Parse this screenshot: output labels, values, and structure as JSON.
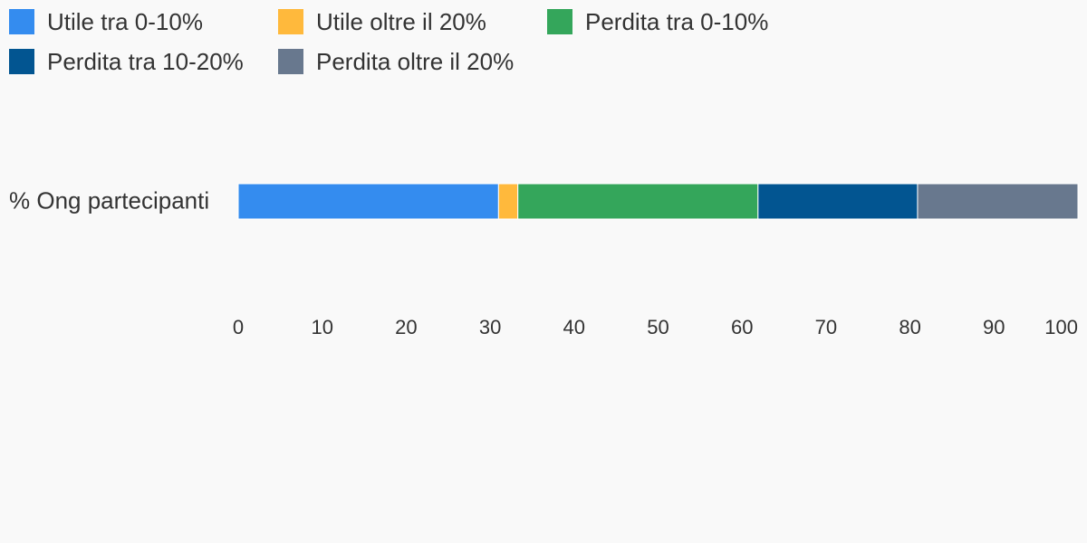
{
  "chart_data": {
    "type": "bar",
    "orientation": "horizontal",
    "stacked": true,
    "categories": [
      "% Ong partecipanti"
    ],
    "series": [
      {
        "name": "Utile tra 0-10%",
        "color": "#348cef",
        "values": [
          31
        ]
      },
      {
        "name": "Utile oltre il 20%",
        "color": "#ffb93c",
        "values": [
          2.3
        ]
      },
      {
        "name": "Perdita tra 0-10%",
        "color": "#34a65b",
        "values": [
          28.6
        ]
      },
      {
        "name": "Perdita tra 10-20%",
        "color": "#025591",
        "values": [
          19
        ]
      },
      {
        "name": "Perdita oltre il 20%",
        "color": "#68788e",
        "values": [
          19.1
        ]
      }
    ],
    "xlim": [
      0,
      100
    ],
    "xticks": [
      "0",
      "10",
      "20",
      "30",
      "40",
      "50",
      "60",
      "70",
      "80",
      "90",
      "100"
    ],
    "legend_position": "top-left",
    "grid": false
  }
}
